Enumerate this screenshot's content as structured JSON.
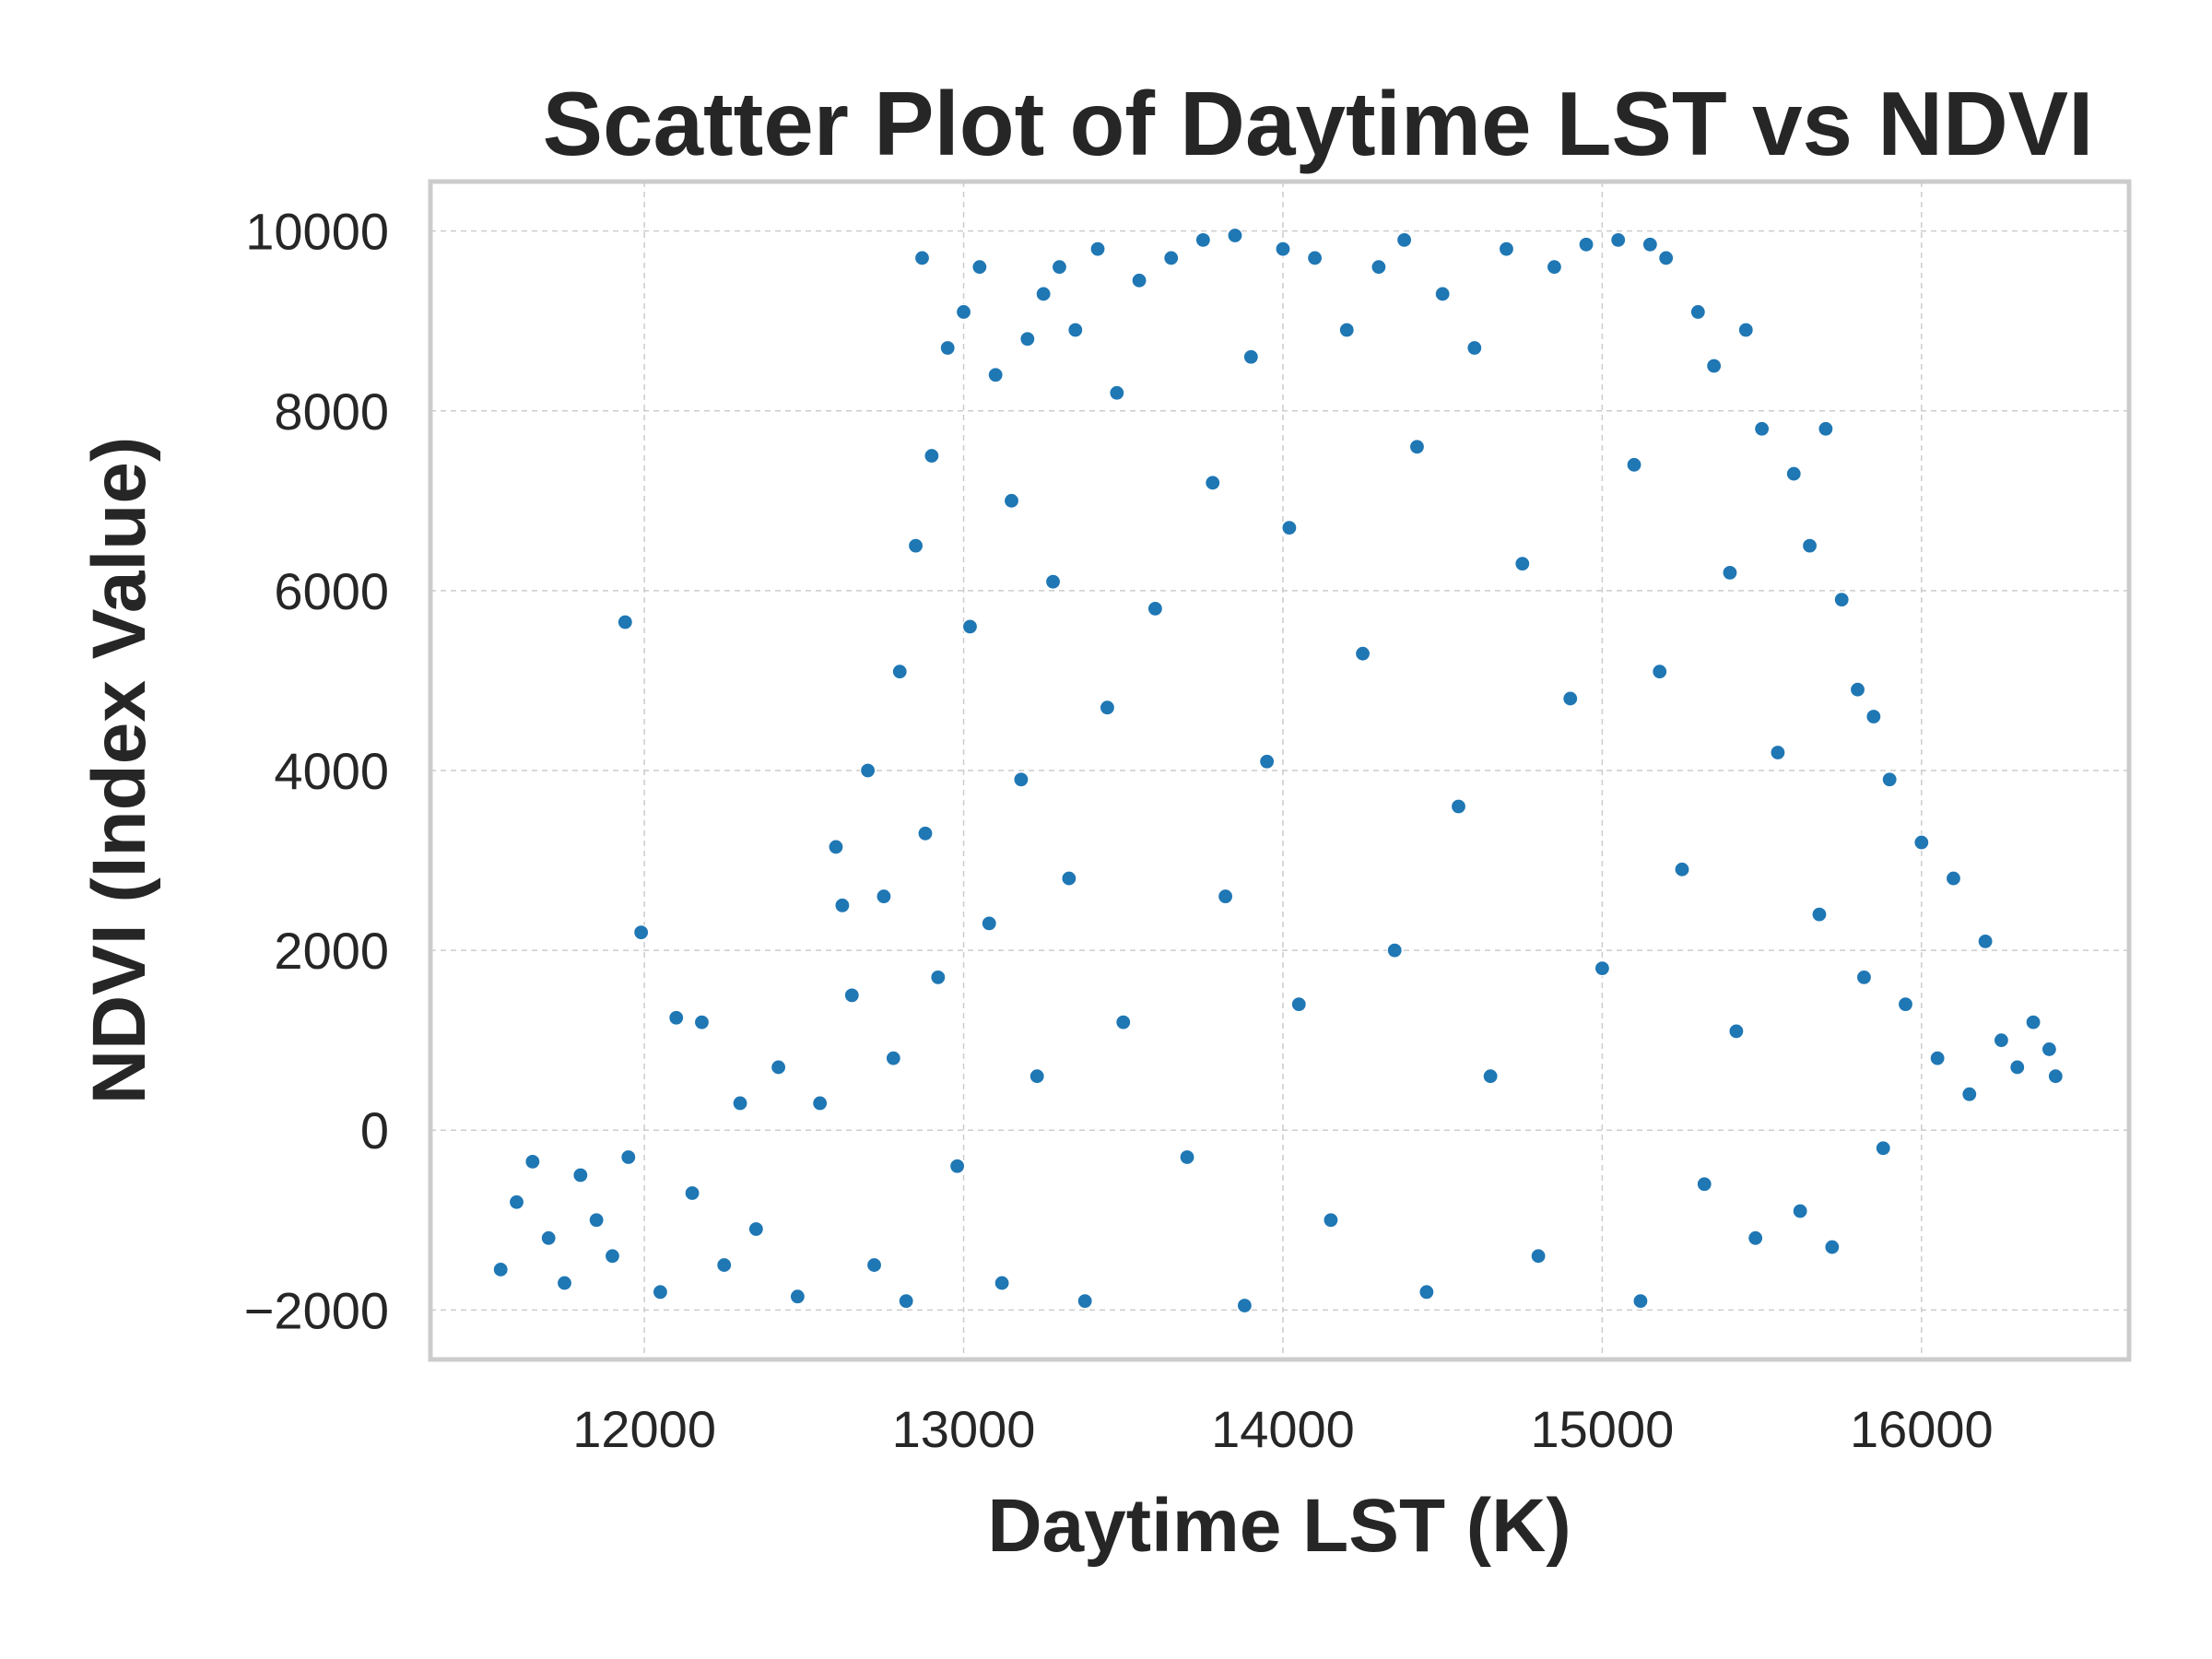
{
  "chart_data": {
    "type": "scatter",
    "title": "Scatter Plot of Daytime LST vs NDVI",
    "xlabel": "Daytime LST (K)",
    "ylabel": "NDVI (Index Value)",
    "xlim": [
      11330,
      16650
    ],
    "ylim": [
      -2550,
      10550
    ],
    "x_ticks": [
      12000,
      13000,
      14000,
      15000,
      16000
    ],
    "x_tick_labels": [
      "12000",
      "13000",
      "14000",
      "15000",
      "16000"
    ],
    "y_ticks": [
      -2000,
      0,
      2000,
      4000,
      6000,
      8000,
      10000
    ],
    "y_tick_labels": [
      "−2000",
      "0",
      "2000",
      "4000",
      "6000",
      "8000",
      "10000"
    ],
    "grid": true,
    "point_color": "#1f77b4",
    "series": [
      {
        "points": [
          [
            11550,
            -1550
          ],
          [
            11600,
            -800
          ],
          [
            11650,
            -350
          ],
          [
            11700,
            -1200
          ],
          [
            11750,
            -1700
          ],
          [
            11800,
            -500
          ],
          [
            11850,
            -1000
          ],
          [
            11900,
            -1400
          ],
          [
            11950,
            -300
          ],
          [
            11940,
            5650
          ],
          [
            11990,
            2200
          ],
          [
            12050,
            -1800
          ],
          [
            12100,
            1250
          ],
          [
            12150,
            -700
          ],
          [
            12180,
            1200
          ],
          [
            12250,
            -1500
          ],
          [
            12300,
            300
          ],
          [
            12350,
            -1100
          ],
          [
            12420,
            700
          ],
          [
            12480,
            -1850
          ],
          [
            12550,
            300
          ],
          [
            12600,
            3150
          ],
          [
            12620,
            2500
          ],
          [
            12650,
            1500
          ],
          [
            12700,
            4000
          ],
          [
            12720,
            -1500
          ],
          [
            12750,
            2600
          ],
          [
            12780,
            800
          ],
          [
            12800,
            5100
          ],
          [
            12820,
            -1900
          ],
          [
            12850,
            6500
          ],
          [
            12870,
            9700
          ],
          [
            12880,
            3300
          ],
          [
            12900,
            7500
          ],
          [
            12920,
            1700
          ],
          [
            12950,
            8700
          ],
          [
            12980,
            -400
          ],
          [
            13000,
            9100
          ],
          [
            13020,
            5600
          ],
          [
            13050,
            9600
          ],
          [
            13080,
            2300
          ],
          [
            13100,
            8400
          ],
          [
            13120,
            -1700
          ],
          [
            13150,
            7000
          ],
          [
            13180,
            3900
          ],
          [
            13200,
            8800
          ],
          [
            13230,
            600
          ],
          [
            13250,
            9300
          ],
          [
            13280,
            6100
          ],
          [
            13300,
            9600
          ],
          [
            13330,
            2800
          ],
          [
            13350,
            8900
          ],
          [
            13380,
            -1900
          ],
          [
            13420,
            9800
          ],
          [
            13450,
            4700
          ],
          [
            13480,
            8200
          ],
          [
            13500,
            1200
          ],
          [
            13550,
            9450
          ],
          [
            13600,
            5800
          ],
          [
            13650,
            9700
          ],
          [
            13700,
            -300
          ],
          [
            13750,
            9900
          ],
          [
            13780,
            7200
          ],
          [
            13820,
            2600
          ],
          [
            13850,
            9950
          ],
          [
            13880,
            -1950
          ],
          [
            13900,
            8600
          ],
          [
            13950,
            4100
          ],
          [
            14000,
            9800
          ],
          [
            14020,
            6700
          ],
          [
            14050,
            1400
          ],
          [
            14100,
            9700
          ],
          [
            14150,
            -1000
          ],
          [
            14200,
            8900
          ],
          [
            14250,
            5300
          ],
          [
            14300,
            9600
          ],
          [
            14350,
            2000
          ],
          [
            14380,
            9900
          ],
          [
            14420,
            7600
          ],
          [
            14450,
            -1800
          ],
          [
            14500,
            9300
          ],
          [
            14550,
            3600
          ],
          [
            14600,
            8700
          ],
          [
            14650,
            600
          ],
          [
            14700,
            9800
          ],
          [
            14750,
            6300
          ],
          [
            14800,
            -1400
          ],
          [
            14850,
            9600
          ],
          [
            14900,
            4800
          ],
          [
            14950,
            9850
          ],
          [
            15000,
            1800
          ],
          [
            15050,
            9900
          ],
          [
            15100,
            7400
          ],
          [
            15120,
            -1900
          ],
          [
            15150,
            9850
          ],
          [
            15180,
            5100
          ],
          [
            15200,
            9700
          ],
          [
            15250,
            2900
          ],
          [
            15300,
            9100
          ],
          [
            15320,
            -600
          ],
          [
            15350,
            8500
          ],
          [
            15400,
            6200
          ],
          [
            15420,
            1100
          ],
          [
            15450,
            8900
          ],
          [
            15480,
            -1200
          ],
          [
            15500,
            7800
          ],
          [
            15550,
            4200
          ],
          [
            15600,
            7300
          ],
          [
            15620,
            -900
          ],
          [
            15650,
            6500
          ],
          [
            15680,
            2400
          ],
          [
            15700,
            7800
          ],
          [
            15720,
            -1300
          ],
          [
            15750,
            5900
          ],
          [
            15800,
            4900
          ],
          [
            15820,
            1700
          ],
          [
            15850,
            4600
          ],
          [
            15880,
            -200
          ],
          [
            15900,
            3900
          ],
          [
            15950,
            1400
          ],
          [
            16000,
            3200
          ],
          [
            16050,
            800
          ],
          [
            16100,
            2800
          ],
          [
            16150,
            400
          ],
          [
            16200,
            2100
          ],
          [
            16250,
            1000
          ],
          [
            16300,
            700
          ],
          [
            16350,
            1200
          ],
          [
            16400,
            900
          ],
          [
            16420,
            600
          ]
        ]
      }
    ]
  }
}
